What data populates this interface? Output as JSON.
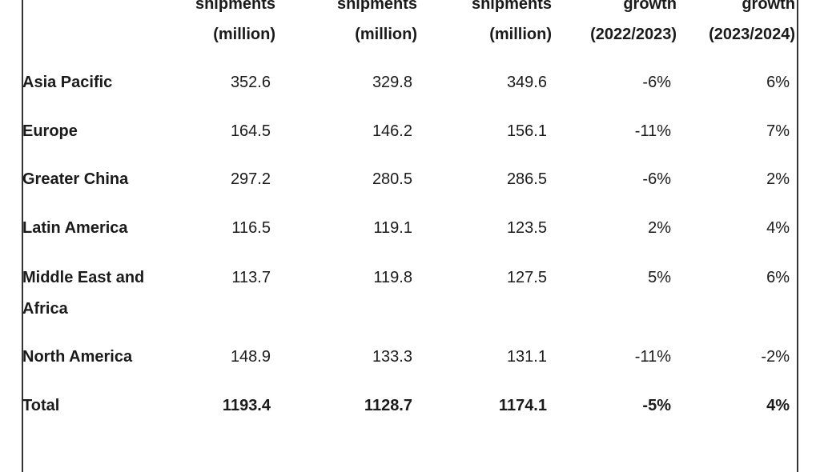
{
  "table": {
    "header": [
      [
        "shipments",
        "(million)"
      ],
      [
        "shipments",
        "(million)"
      ],
      [
        "shipments",
        "(million)"
      ],
      [
        "growth",
        "(2022/2023)"
      ],
      [
        "growth",
        "(2023/2024)"
      ]
    ],
    "rows": [
      [
        "Asia Pacific",
        "352.6",
        "329.8",
        "349.6",
        "-6%",
        "6%"
      ],
      [
        "Europe",
        "164.5",
        "146.2",
        "156.1",
        "-11%",
        "7%"
      ],
      [
        "Greater China",
        "297.2",
        "280.5",
        "286.5",
        "-6%",
        "2%"
      ],
      [
        "Latin America",
        "116.5",
        "119.1",
        "123.5",
        "2%",
        "4%"
      ],
      [
        "Middle East and Africa",
        "113.7",
        "119.8",
        "127.5",
        "5%",
        "6%"
      ],
      [
        "North America",
        "148.9",
        "133.3",
        "131.1",
        "-11%",
        "-2%"
      ],
      [
        "Total",
        "1193.4",
        "1128.7",
        "1174.1",
        "-5%",
        "4%"
      ]
    ]
  }
}
